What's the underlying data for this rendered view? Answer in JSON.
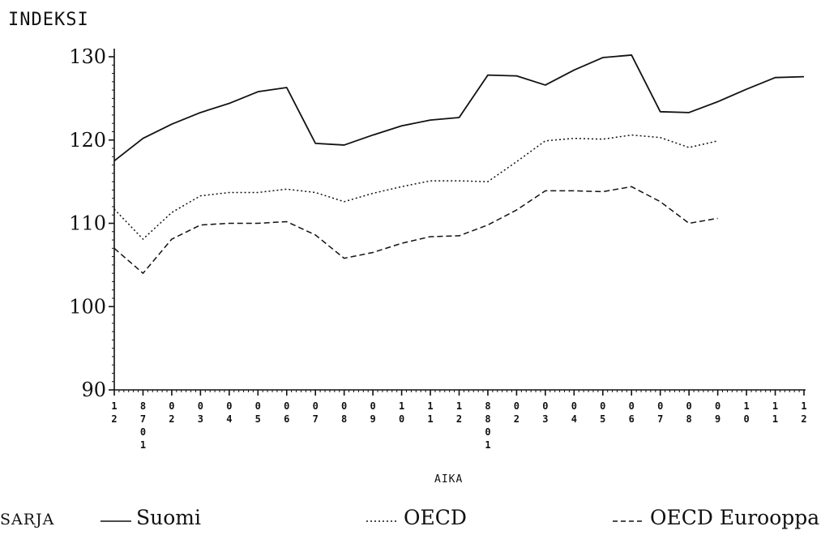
{
  "chart_data": {
    "type": "line",
    "ylabel": "INDEKSI",
    "xlabel": "AIKA",
    "ylim": [
      90,
      130
    ],
    "yticks": [
      90,
      100,
      110,
      120,
      130
    ],
    "x_tick_labels": [
      [
        "1",
        "2"
      ],
      [
        "8",
        "7",
        "0",
        "1"
      ],
      [
        "0",
        "2"
      ],
      [
        "0",
        "3"
      ],
      [
        "0",
        "4"
      ],
      [
        "0",
        "5"
      ],
      [
        "0",
        "6"
      ],
      [
        "0",
        "7"
      ],
      [
        "0",
        "8"
      ],
      [
        "0",
        "9"
      ],
      [
        "1",
        "0"
      ],
      [
        "1",
        "1"
      ],
      [
        "1",
        "2"
      ],
      [
        "8",
        "8",
        "0",
        "1"
      ],
      [
        "0",
        "2"
      ],
      [
        "0",
        "3"
      ],
      [
        "0",
        "4"
      ],
      [
        "0",
        "5"
      ],
      [
        "0",
        "6"
      ],
      [
        "0",
        "7"
      ],
      [
        "0",
        "8"
      ],
      [
        "0",
        "9"
      ],
      [
        "1",
        "0"
      ],
      [
        "1",
        "1"
      ],
      [
        "1",
        "2"
      ]
    ],
    "legend_title": "SARJA",
    "legend_placement": "bottom",
    "series": [
      {
        "name": "Suomi",
        "style": "solid",
        "values": [
          117.5,
          120.2,
          121.9,
          123.3,
          124.4,
          125.8,
          126.3,
          119.6,
          119.4,
          120.6,
          121.7,
          122.4,
          122.7,
          127.8,
          127.7,
          126.6,
          128.4,
          129.9,
          130.2,
          123.4,
          123.3,
          124.6,
          126.1,
          127.5,
          127.6
        ]
      },
      {
        "name": "OECD",
        "style": "dotted",
        "values": [
          111.7,
          108.1,
          111.3,
          113.3,
          113.7,
          113.7,
          114.1,
          113.7,
          112.6,
          113.6,
          114.4,
          115.1,
          115.1,
          115.0,
          117.4,
          119.9,
          120.2,
          120.1,
          120.6,
          120.3,
          119.1,
          119.9,
          null,
          null,
          null
        ]
      },
      {
        "name": "OECD Eurooppa",
        "style": "dashed",
        "values": [
          107.0,
          104.0,
          108.1,
          109.8,
          110.0,
          110.0,
          110.2,
          108.6,
          105.8,
          106.5,
          107.6,
          108.4,
          108.5,
          109.8,
          111.6,
          113.9,
          113.9,
          113.8,
          114.4,
          112.6,
          110.0,
          110.6,
          null,
          null,
          null
        ]
      }
    ]
  }
}
